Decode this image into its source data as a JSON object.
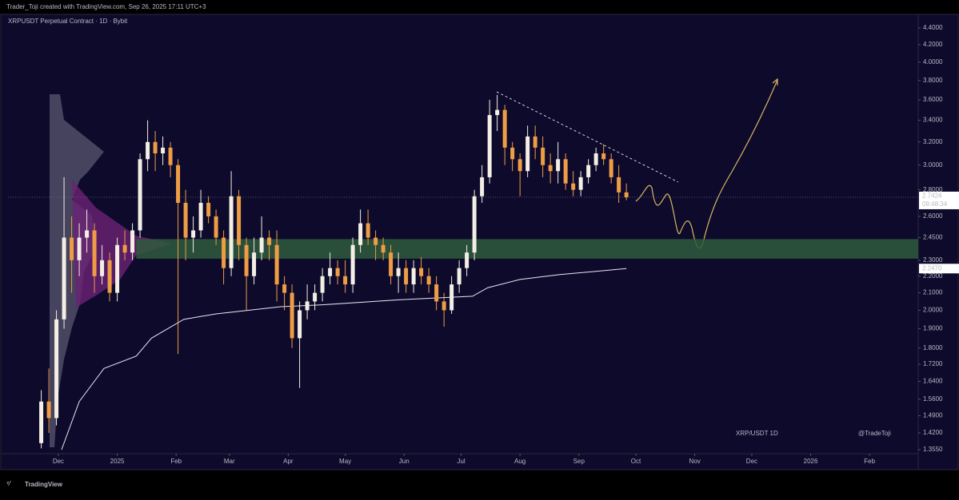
{
  "header": "Trader_Toji created with TradingView.com, Sep 26, 2025 17:11 UTC+3",
  "footer": "TradingView",
  "chart_data": {
    "type": "candlestick",
    "title": "XRPUSDT Perpetual Contract · 1D · Bybit",
    "watermark": "XRP/USDT 1D",
    "author": "@TradeToji",
    "log_scale": true,
    "up_color": "#f4efe4",
    "down_color": "#ef9d45",
    "xlim": [
      -26.5,
      452.6
    ],
    "xticks": [
      {
        "value": 0,
        "label": "Dec"
      },
      {
        "value": 31,
        "label": "2025"
      },
      {
        "value": 62,
        "label": "Feb"
      },
      {
        "value": 90,
        "label": "Mar"
      },
      {
        "value": 121,
        "label": "Apr"
      },
      {
        "value": 151,
        "label": "May"
      },
      {
        "value": 182,
        "label": "Jun"
      },
      {
        "value": 212,
        "label": "Jul"
      },
      {
        "value": 243,
        "label": "Aug"
      },
      {
        "value": 274,
        "label": "Sep"
      },
      {
        "value": 304,
        "label": "Oct"
      },
      {
        "value": 335,
        "label": "Nov"
      },
      {
        "value": 365,
        "label": "Dec"
      },
      {
        "value": 396,
        "label": "2026"
      },
      {
        "value": 427,
        "label": "Feb"
      }
    ],
    "ylim": [
      1.34,
      4.55
    ],
    "yticks": [
      {
        "value": 4.4,
        "label": "4.4000"
      },
      {
        "value": 4.2,
        "label": "4.2000"
      },
      {
        "value": 4.0,
        "label": "4.0000"
      },
      {
        "value": 3.8,
        "label": "3.8000"
      },
      {
        "value": 3.6,
        "label": "3.6000"
      },
      {
        "value": 3.4,
        "label": "3.4000"
      },
      {
        "value": 3.2,
        "label": "3.2000"
      },
      {
        "value": 3.0,
        "label": "3.0000"
      },
      {
        "value": 2.8,
        "label": "2.8000"
      },
      {
        "value": 2.6,
        "label": "2.6000"
      },
      {
        "value": 2.45,
        "label": "2.4500"
      },
      {
        "value": 2.3,
        "label": "2.3000"
      },
      {
        "value": 2.2,
        "label": "2.2000"
      },
      {
        "value": 2.1,
        "label": "2.1000"
      },
      {
        "value": 2.0,
        "label": "2.0000"
      },
      {
        "value": 1.9,
        "label": "1.9000"
      },
      {
        "value": 1.8,
        "label": "1.8000"
      },
      {
        "value": 1.72,
        "label": "1.7200"
      },
      {
        "value": 1.64,
        "label": "1.6400"
      },
      {
        "value": 1.56,
        "label": "1.5600"
      },
      {
        "value": 1.49,
        "label": "1.4900"
      },
      {
        "value": 1.42,
        "label": "1.4200"
      },
      {
        "value": 1.355,
        "label": "1.3550"
      }
    ],
    "x": [
      -9,
      -5,
      -1,
      3,
      7,
      11,
      15,
      19,
      23,
      27,
      31,
      35,
      39,
      43,
      47,
      51,
      55,
      59,
      63,
      67,
      71,
      75,
      79,
      83,
      87,
      91,
      95,
      99,
      103,
      107,
      111,
      115,
      119,
      123,
      127,
      131,
      135,
      139,
      143,
      147,
      151,
      155,
      159,
      163,
      167,
      171,
      175,
      179,
      183,
      187,
      191,
      195,
      199,
      203,
      207,
      211,
      215,
      219,
      223,
      227,
      231,
      235,
      239,
      243,
      247,
      251,
      255,
      259,
      263,
      267,
      271,
      275,
      279,
      283,
      287,
      291,
      295,
      299
    ],
    "open": [
      1.38,
      1.55,
      1.48,
      1.95,
      2.45,
      2.3,
      2.45,
      2.5,
      2.2,
      2.3,
      2.1,
      2.4,
      2.35,
      2.5,
      3.05,
      3.2,
      3.1,
      3.15,
      3.0,
      2.7,
      2.45,
      2.5,
      2.7,
      2.6,
      2.45,
      2.25,
      2.75,
      2.4,
      2.2,
      2.35,
      2.45,
      2.4,
      2.15,
      2.1,
      1.85,
      2.0,
      2.05,
      2.1,
      2.2,
      2.25,
      2.2,
      2.15,
      2.4,
      2.55,
      2.45,
      2.4,
      2.35,
      2.2,
      2.25,
      2.15,
      2.25,
      2.2,
      2.15,
      2.05,
      2.0,
      2.15,
      2.25,
      2.35,
      2.75,
      2.9,
      3.45,
      3.5,
      3.15,
      3.05,
      2.95,
      3.25,
      3.15,
      3.0,
      2.95,
      3.05,
      2.85,
      2.8,
      2.9,
      3.0,
      3.1,
      3.05,
      2.9,
      2.78
    ],
    "high": [
      1.6,
      1.7,
      2.0,
      2.9,
      2.6,
      2.55,
      2.65,
      2.55,
      2.4,
      2.35,
      2.45,
      2.5,
      2.55,
      3.1,
      3.4,
      3.3,
      3.25,
      3.2,
      3.05,
      2.8,
      2.6,
      2.8,
      2.75,
      2.65,
      2.5,
      2.95,
      2.8,
      2.45,
      2.45,
      2.6,
      2.5,
      2.5,
      2.2,
      2.15,
      2.05,
      2.15,
      2.15,
      2.25,
      2.35,
      2.3,
      2.3,
      2.45,
      2.65,
      2.65,
      2.5,
      2.45,
      2.4,
      2.35,
      2.3,
      2.3,
      2.32,
      2.25,
      2.2,
      2.1,
      2.2,
      2.3,
      2.4,
      2.8,
      3.0,
      3.6,
      3.65,
      3.55,
      3.2,
      3.1,
      3.35,
      3.35,
      3.25,
      3.1,
      3.2,
      3.1,
      2.95,
      2.95,
      3.05,
      3.15,
      3.18,
      3.1,
      3.0,
      2.85
    ],
    "low": [
      1.36,
      1.42,
      1.45,
      1.9,
      2.1,
      2.2,
      2.35,
      2.1,
      2.15,
      2.05,
      2.05,
      2.3,
      2.3,
      2.45,
      2.95,
      2.95,
      3.0,
      2.9,
      1.77,
      2.3,
      2.35,
      2.45,
      2.55,
      2.4,
      2.15,
      2.2,
      2.3,
      2.0,
      2.15,
      2.3,
      2.3,
      2.05,
      2.0,
      1.8,
      1.61,
      1.95,
      2.0,
      2.05,
      2.15,
      2.15,
      2.1,
      2.1,
      2.35,
      2.4,
      2.3,
      2.3,
      2.15,
      2.1,
      2.1,
      2.1,
      2.15,
      2.1,
      2.0,
      1.91,
      1.98,
      2.1,
      2.2,
      2.3,
      2.7,
      2.85,
      3.3,
      3.0,
      2.95,
      2.75,
      2.9,
      3.05,
      2.9,
      2.85,
      2.85,
      2.8,
      2.75,
      2.75,
      2.85,
      2.95,
      3.0,
      2.85,
      2.7,
      2.72
    ],
    "close": [
      1.55,
      1.48,
      1.95,
      2.45,
      2.3,
      2.45,
      2.5,
      2.2,
      2.3,
      2.1,
      2.4,
      2.35,
      2.5,
      3.05,
      3.2,
      3.1,
      3.15,
      3.0,
      2.7,
      2.45,
      2.5,
      2.7,
      2.6,
      2.45,
      2.25,
      2.75,
      2.4,
      2.2,
      2.35,
      2.45,
      2.4,
      2.15,
      2.1,
      1.85,
      2.0,
      2.05,
      2.1,
      2.2,
      2.25,
      2.2,
      2.15,
      2.4,
      2.55,
      2.45,
      2.4,
      2.35,
      2.2,
      2.25,
      2.15,
      2.25,
      2.2,
      2.15,
      2.05,
      2.0,
      2.15,
      2.25,
      2.35,
      2.75,
      2.9,
      3.45,
      3.5,
      3.15,
      3.05,
      2.95,
      3.25,
      3.15,
      3.0,
      2.95,
      3.05,
      2.85,
      2.8,
      2.9,
      3.0,
      3.1,
      3.05,
      2.9,
      2.78,
      2.7424
    ],
    "last_price": {
      "value": 2.7424,
      "label": "2.7424"
    },
    "countdown": "09:48:34",
    "support_zone": {
      "low": 2.31,
      "high": 2.44,
      "from": 41
    },
    "vwap": {
      "color": "#e8e8f0",
      "x": [
        1.7,
        11,
        24,
        41,
        49,
        66,
        83,
        100,
        117,
        138,
        180,
        218,
        226,
        243,
        264,
        299
      ],
      "values": [
        1.355,
        1.55,
        1.7,
        1.76,
        1.85,
        1.95,
        1.98,
        2.0,
        2.02,
        2.03,
        2.06,
        2.08,
        2.13,
        2.18,
        2.21,
        2.247
      ]
    },
    "vwap_last": {
      "value": 2.247,
      "label": "2.2470"
    }
  }
}
